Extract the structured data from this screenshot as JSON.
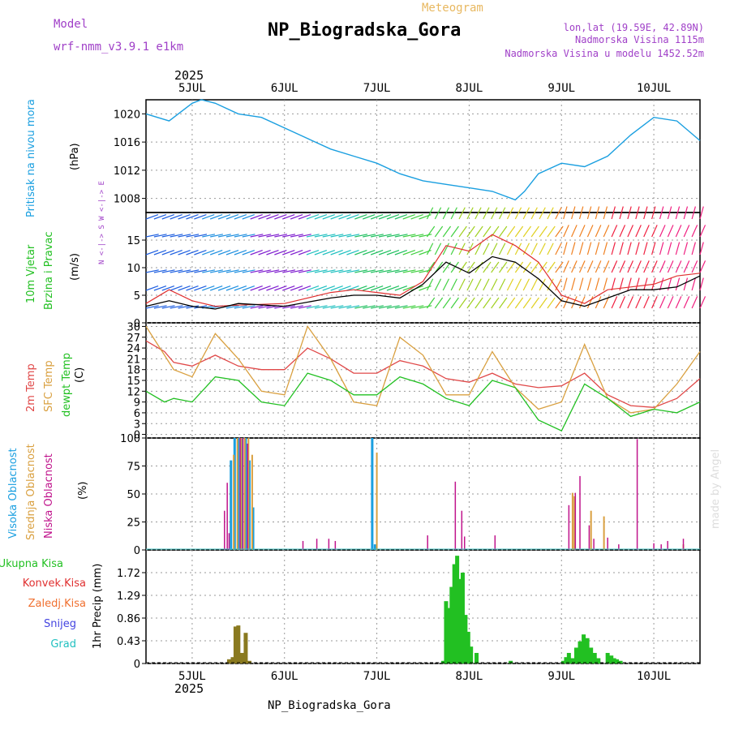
{
  "header": {
    "model_label": "Model",
    "model_name": "wrf-nmm_v3.9.1 e1km",
    "meteogram_label": "Meteogram",
    "title": "NP_Biogradska_Gora",
    "coords": "lon,lat (19.59E, 42.89N)",
    "altitude": "Nadmorska Visina 1115m",
    "model_altitude": "Nadmorska Visina u modelu 1452.52m"
  },
  "footer": {
    "station": "NP_Biogradska_Gora",
    "watermark": "made by Angel"
  },
  "time_axis": {
    "year": "2025",
    "day_labels": [
      "5JUL",
      "6JUL",
      "7JUL",
      "8JUL",
      "9JUL",
      "10JUL"
    ],
    "day_positions": [
      0.5,
      1.5,
      2.5,
      3.5,
      4.5,
      5.5
    ],
    "range": [
      0,
      6
    ]
  },
  "colors": {
    "pressure": "#1a9fe0",
    "wind_speed": "#000000",
    "gust": "#e03030",
    "temp2m": "#e04848",
    "sfc_temp": "#d9a040",
    "dewpoint": "#22c022",
    "high_cloud": "#1a9fe0",
    "mid_cloud": "#d9a040",
    "low_cloud": "#c0148c",
    "total_precip": "#22c022",
    "conv_precip": "#e03030",
    "strat_precip": "#f07030",
    "snow": "#4444e0",
    "hail": "#20c0c0",
    "purple_text": "#a040c8"
  },
  "chart_data": [
    {
      "type": "line",
      "panel": "pressure",
      "ylabel": "Pritisak na nivou mora",
      "unit": "(hPa)",
      "ylim": [
        1006,
        1022
      ],
      "yticks": [
        "1008",
        "1012",
        "1016",
        "1020"
      ],
      "x": [
        0,
        0.25,
        0.5,
        0.6,
        0.75,
        1.0,
        1.25,
        1.5,
        1.75,
        2.0,
        2.25,
        2.5,
        2.75,
        3.0,
        3.25,
        3.5,
        3.75,
        4.0,
        4.1,
        4.25,
        4.5,
        4.75,
        5.0,
        5.25,
        5.5,
        5.75,
        6.0
      ],
      "y": [
        1020,
        1019,
        1021.5,
        1022,
        1021.5,
        1020,
        1019.5,
        1018,
        1016.5,
        1015,
        1014,
        1013,
        1011.5,
        1010.5,
        1010,
        1009.5,
        1009,
        1007.8,
        1009,
        1011.5,
        1013,
        1012.5,
        1014,
        1017,
        1019.5,
        1019,
        1016.2
      ]
    },
    {
      "type": "line",
      "panel": "wind",
      "ylabel": "10m Vjetar",
      "ylabel2": "Brzina i Pravac",
      "unit": "(m/s)",
      "compass": "N <-|-> S   W <-|-> E",
      "ylim": [
        0,
        20
      ],
      "yticks": [
        "0",
        "5",
        "10",
        "15"
      ],
      "series": [
        {
          "name": "speed",
          "x": [
            0,
            0.25,
            0.5,
            0.75,
            1.0,
            1.5,
            2.0,
            2.25,
            2.5,
            2.75,
            3.0,
            3.25,
            3.5,
            3.75,
            4.0,
            4.25,
            4.5,
            4.75,
            5.0,
            5.25,
            5.5,
            5.75,
            6.0
          ],
          "y": [
            3,
            4,
            3,
            2.5,
            3.5,
            3,
            4.5,
            5,
            5,
            4.5,
            7,
            11,
            9,
            12,
            11,
            8,
            4,
            3,
            4.5,
            6,
            6,
            6.5,
            8.5
          ]
        },
        {
          "name": "gust",
          "x": [
            0,
            0.25,
            0.5,
            0.75,
            1.0,
            1.5,
            2.0,
            2.25,
            2.5,
            2.75,
            3.0,
            3.25,
            3.5,
            3.75,
            4.0,
            4.25,
            4.5,
            4.75,
            5.0,
            5.25,
            5.5,
            5.75,
            6.0
          ],
          "y": [
            3.5,
            6,
            4,
            3,
            3.2,
            3.5,
            5.5,
            6,
            5.5,
            5,
            7.5,
            14,
            13,
            16,
            14,
            11,
            5,
            3.5,
            6,
            6.5,
            7,
            8.5,
            9
          ]
        }
      ],
      "barb_colors": [
        "#2060e0",
        "#2090e0",
        "#8020d0",
        "#20c0c0",
        "#20c060",
        "#40d040",
        "#a0d020",
        "#e0d020",
        "#f08020",
        "#f02040",
        "#f02080"
      ]
    },
    {
      "type": "line",
      "panel": "temperature",
      "ylabel": "2m Temp",
      "ylabel2": "SFC Temp",
      "ylabel3": "dewpt Temp",
      "unit": "(C)",
      "ylim": [
        -1,
        31
      ],
      "yticks": [
        "0",
        "3",
        "6",
        "9",
        "12",
        "15",
        "18",
        "21",
        "24",
        "27",
        "30"
      ],
      "series": [
        {
          "name": "2m Temp",
          "x": [
            0,
            0.2,
            0.3,
            0.5,
            0.75,
            1.0,
            1.25,
            1.5,
            1.75,
            2.0,
            2.25,
            2.5,
            2.75,
            3.0,
            3.25,
            3.5,
            3.75,
            4.0,
            4.25,
            4.5,
            4.75,
            5.0,
            5.25,
            5.5,
            5.75,
            6.0
          ],
          "y": [
            26,
            23,
            20,
            19,
            22,
            19,
            18,
            18,
            24,
            21,
            17,
            17,
            20.5,
            19,
            15.5,
            14.5,
            17,
            14,
            13,
            13.5,
            17,
            11,
            8,
            7.5,
            10,
            15.5
          ]
        },
        {
          "name": "SFC Temp",
          "x": [
            0,
            0.2,
            0.3,
            0.5,
            0.75,
            1.0,
            1.25,
            1.5,
            1.75,
            2.0,
            2.25,
            2.5,
            2.75,
            3.0,
            3.25,
            3.5,
            3.75,
            4.0,
            4.25,
            4.5,
            4.75,
            5.0,
            5.25,
            5.5,
            5.75,
            6.0
          ],
          "y": [
            30,
            22,
            18,
            16,
            28,
            21,
            12,
            11,
            30,
            21,
            9,
            8,
            27,
            22,
            11,
            11,
            23,
            13,
            7,
            9,
            25,
            10,
            6,
            7,
            14,
            23
          ]
        },
        {
          "name": "dewpt Temp",
          "x": [
            0,
            0.2,
            0.3,
            0.5,
            0.75,
            1.0,
            1.25,
            1.5,
            1.75,
            2.0,
            2.25,
            2.5,
            2.75,
            3.0,
            3.25,
            3.5,
            3.75,
            4.0,
            4.25,
            4.5,
            4.75,
            5.0,
            5.25,
            5.5,
            5.75,
            6.0
          ],
          "y": [
            12,
            9,
            10,
            9,
            16,
            15,
            9,
            8,
            17,
            15,
            11,
            11,
            16,
            14,
            10,
            8,
            15,
            13,
            4,
            1,
            14,
            10,
            5,
            7,
            6,
            9
          ]
        }
      ]
    },
    {
      "type": "bar",
      "panel": "clouds",
      "ylabels": [
        "Visoka Oblacnost",
        "Srednja Oblacnost",
        "Niska Oblacnost"
      ],
      "unit": "(%)",
      "ylim": [
        0,
        100
      ],
      "yticks": [
        "0",
        "25",
        "50",
        "75",
        "100"
      ],
      "series": [
        {
          "name": "Visoka Oblacnost",
          "x": [
            0.92,
            0.96,
            1.0,
            1.04,
            1.08,
            1.12,
            1.16,
            2.45,
            2.48
          ],
          "y": [
            80,
            100,
            100,
            100,
            100,
            80,
            38,
            100,
            5
          ]
        },
        {
          "name": "Srednja Oblacnost",
          "x": [
            0.95,
            0.99,
            1.03,
            1.07,
            1.11,
            1.15,
            2.5,
            4.62,
            4.64,
            4.82,
            4.96,
            5.82
          ],
          "y": [
            85,
            100,
            100,
            100,
            100,
            85,
            87,
            51,
            48,
            35,
            30,
            5
          ]
        },
        {
          "name": "Niska Oblacnost",
          "x": [
            0.85,
            0.88,
            0.9,
            1.02,
            1.05,
            1.1,
            1.7,
            1.85,
            1.98,
            2.05,
            3.05,
            3.35,
            3.42,
            3.45,
            3.78,
            4.58,
            4.65,
            4.7,
            4.8,
            4.85,
            5.0,
            5.12,
            5.32,
            5.5,
            5.58,
            5.65,
            5.82
          ],
          "y": [
            35,
            60,
            15,
            100,
            100,
            95,
            8,
            10,
            10,
            8,
            13,
            61,
            35,
            12,
            13,
            40,
            51,
            66,
            22,
            10,
            11,
            5,
            99,
            6,
            5,
            8,
            10
          ]
        }
      ]
    },
    {
      "type": "bar",
      "panel": "precipitation",
      "legend": [
        "Ukupna Kisa",
        "Konvek.Kisa",
        "Zaledj.Kisa",
        "Snijeg",
        "Grad"
      ],
      "ylabel": "1hr Precip (mm)",
      "ylim": [
        0,
        2.15
      ],
      "yticks": [
        "0",
        "0.43",
        "0.86",
        "1.29",
        "1.72"
      ],
      "series": [
        {
          "name": "Ukupna Kisa",
          "x": [
            3.22,
            3.25,
            3.28,
            3.31,
            3.34,
            3.37,
            3.4,
            3.43,
            3.46,
            3.49,
            3.52,
            3.58,
            3.95,
            4.52,
            4.55,
            4.58,
            4.62,
            4.66,
            4.7,
            4.74,
            4.78,
            4.82,
            4.86,
            4.9,
            5.0,
            5.04,
            5.07,
            5.1,
            5.14
          ],
          "y": [
            0.05,
            1.18,
            1.05,
            1.45,
            1.88,
            2.04,
            1.6,
            1.72,
            0.92,
            0.6,
            0.32,
            0.2,
            0.05,
            0.05,
            0.12,
            0.2,
            0.1,
            0.3,
            0.42,
            0.55,
            0.48,
            0.3,
            0.2,
            0.1,
            0.2,
            0.15,
            0.1,
            0.08,
            0.05
          ]
        },
        {
          "name": "Zaledj.Kisa",
          "x": [
            0.9,
            0.94,
            0.97,
            1.0,
            1.04,
            1.08,
            1.12
          ],
          "y": [
            0.08,
            0.12,
            0.7,
            0.72,
            0.2,
            0.58,
            0.05
          ]
        }
      ]
    }
  ]
}
